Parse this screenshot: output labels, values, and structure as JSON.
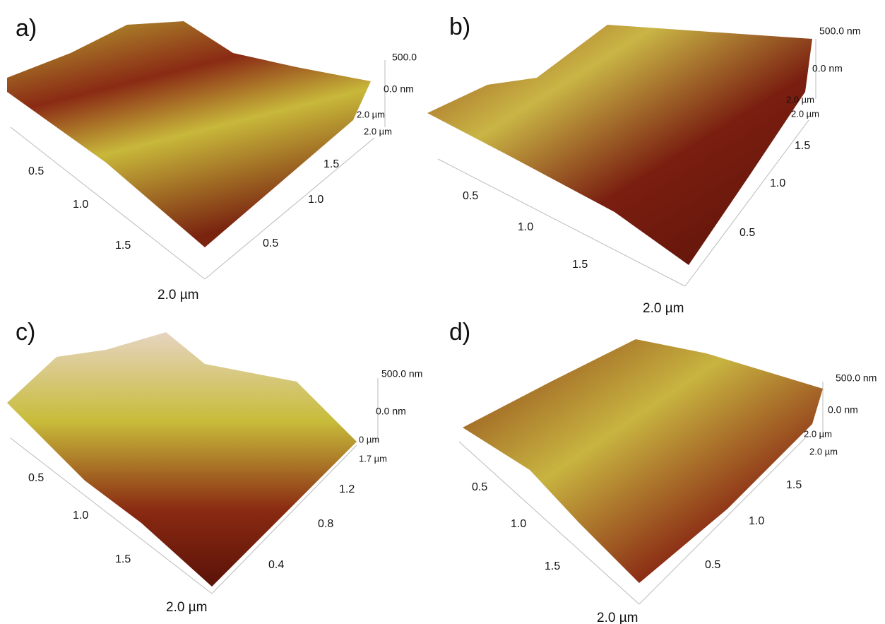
{
  "panels": [
    {
      "label": "a)",
      "z_labels": [
        "500.0",
        "0.0 nm",
        "2.0 µm",
        "2.0 µm"
      ],
      "right_ticks": [
        "1.5",
        "1.0",
        "0.5"
      ],
      "left_ticks": [
        "0.5",
        "1.0",
        "1.5",
        "2.0 µm"
      ]
    },
    {
      "label": "b)",
      "z_labels": [
        "500.0 nm",
        "0.0 nm",
        "2.0 µm",
        "2.0 µm"
      ],
      "right_ticks": [
        "1.5",
        "1.0",
        "0.5"
      ],
      "left_ticks": [
        "0.5",
        "1.0",
        "1.5",
        "2.0 µm"
      ]
    },
    {
      "label": "c)",
      "z_labels": [
        "500.0 nm",
        "0.0 nm",
        "0 µm",
        "1.7 µm"
      ],
      "right_ticks": [
        "1.2",
        "0.8",
        "0.4"
      ],
      "left_ticks": [
        "0.5",
        "1.0",
        "1.5",
        "2.0 µm"
      ]
    },
    {
      "label": "d)",
      "z_labels": [
        "500.0 nm",
        "0.0 nm",
        "2.0 µm",
        "2.0 µm"
      ],
      "right_ticks": [
        "1.5",
        "1.0",
        "0.5"
      ],
      "left_ticks": [
        "0.5",
        "1.0",
        "1.5",
        "2.0 µm"
      ]
    }
  ]
}
